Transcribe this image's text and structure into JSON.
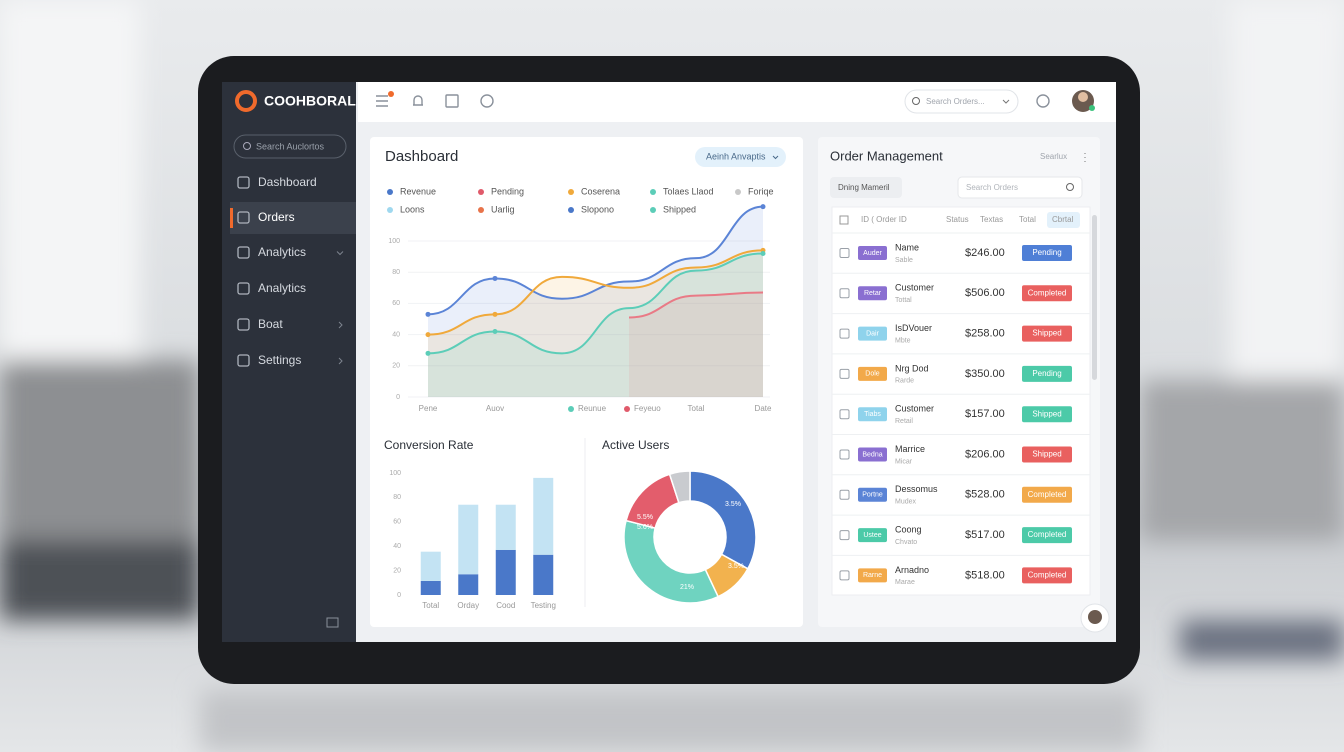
{
  "brand": "COOHBORAL",
  "sidebar": {
    "search": "Search Auclortos",
    "menu": [
      "Dashboard",
      "Orders",
      "Analytics",
      "Analytics",
      "Boat",
      "Settings"
    ]
  },
  "topbar": {
    "search": "Search Orders..."
  },
  "dashboard": {
    "title": "Dashboard",
    "button": "Aeinh Anvaptis"
  },
  "chart_data": [
    {
      "type": "line",
      "legend": [
        {
          "label": "Revenue",
          "color": "#4a78c9"
        },
        {
          "label": "Pending",
          "color": "#e05a6a"
        },
        {
          "label": "Coserena",
          "color": "#f0a93b"
        },
        {
          "label": "Tolaes Llaod",
          "color": "#5ccdb8"
        },
        {
          "label": "Foriqe",
          "color": "#c8c8c8"
        },
        {
          "label": "Loons",
          "color": "#9fd8ef"
        },
        {
          "label": "Uarlig",
          "color": "#e8734a"
        },
        {
          "label": "Slopono",
          "color": "#4a78c9"
        },
        {
          "label": "Shipped",
          "color": "#5ccdb8"
        }
      ],
      "categories": [
        "Pene",
        "Auov",
        null,
        null,
        "Total",
        "Date"
      ],
      "bottom_legend": [
        {
          "label": "Reunue",
          "color": "#5ccdb8"
        },
        {
          "label": "Feyeuo",
          "color": "#e05a6a"
        }
      ],
      "ylim": [
        0,
        125
      ],
      "yticks": [
        0,
        20,
        40,
        60,
        80,
        100
      ],
      "grid": true,
      "series": [
        {
          "color": "#5b84d6",
          "values": [
            53,
            76,
            63,
            74,
            89,
            122
          ]
        },
        {
          "color": "#f0a93b",
          "values": [
            40,
            53,
            77,
            70,
            83,
            94
          ]
        },
        {
          "color": "#5ccdb8",
          "values": [
            28,
            42,
            28,
            57,
            81,
            92
          ]
        },
        {
          "color": "#e97a86",
          "values": [
            null,
            null,
            null,
            51,
            65,
            67
          ]
        }
      ]
    },
    {
      "type": "bar",
      "title": "Conversion Rate",
      "stacked": true,
      "categories": [
        "Total",
        "Orday",
        "Cood",
        "Testing"
      ],
      "ylim": [
        0,
        100
      ],
      "yticks": [
        0,
        20,
        40,
        60,
        80,
        100
      ],
      "series": [
        {
          "color": "#4a78c9",
          "values": [
            11.5,
            17,
            37,
            33
          ]
        },
        {
          "color": "#c3e3f3",
          "values": [
            24,
            57,
            37,
            63
          ]
        }
      ]
    },
    {
      "type": "pie",
      "title": "Active Users",
      "values": [
        33,
        10,
        36,
        16,
        5
      ],
      "colors": [
        "#4a78c9",
        "#f2b24e",
        "#6fd3c0",
        "#e35d6c",
        "#c9cbcf"
      ],
      "annotations": [
        "3.5%",
        "5.5%",
        "5.6%",
        "3.5%",
        "21%"
      ]
    }
  ],
  "orders": {
    "title": "Order Management",
    "menu": "Searlux",
    "filter": "Dning Mameril",
    "search": "Search Orders",
    "headers": [
      "ID ( Order ID",
      "Status",
      "Textas",
      "Total",
      "Cbrtal"
    ],
    "rows": [
      {
        "tag": "Auder",
        "tag_color": "#8a6fd1",
        "name": "Name",
        "sub": "Sable",
        "amount": "$246.00",
        "status": "Pending",
        "status_color": "#4f7fd6"
      },
      {
        "tag": "Retar",
        "tag_color": "#8a6fd1",
        "name": "Customer",
        "sub": "Tottal",
        "amount": "$506.00",
        "status": "Completed",
        "status_color": "#e9605f"
      },
      {
        "tag": "Dair",
        "tag_color": "#8fd3ec",
        "name": "IsDVouer",
        "sub": "Mbte",
        "amount": "$258.00",
        "status": "Shipped",
        "status_color": "#e9605f"
      },
      {
        "tag": "Dole",
        "tag_color": "#f2a94a",
        "name": "Nrg Dod",
        "sub": "Rarde",
        "amount": "$350.00",
        "status": "Pending",
        "status_color": "#4ccaa8"
      },
      {
        "tag": "Tiabs",
        "tag_color": "#8fd3ec",
        "name": "Customer",
        "sub": "Retail",
        "amount": "$157.00",
        "status": "Shipped",
        "status_color": "#4ccaa8"
      },
      {
        "tag": "Bedna",
        "tag_color": "#8a6fd1",
        "name": "Marrice",
        "sub": "Micar",
        "amount": "$206.00",
        "status": "Shipped",
        "status_color": "#e9605f"
      },
      {
        "tag": "Portne",
        "tag_color": "#5b84d6",
        "name": "Dessomus",
        "sub": "Mudex",
        "amount": "$528.00",
        "status": "Completed",
        "status_color": "#f2a94a"
      },
      {
        "tag": "Ustee",
        "tag_color": "#4ccaa8",
        "name": "Coong",
        "sub": "Chvato",
        "amount": "$517.00",
        "status": "Completed",
        "status_color": "#4ccaa8"
      },
      {
        "tag": "Rarne",
        "tag_color": "#f2a94a",
        "name": "Arnadno",
        "sub": "Marae",
        "amount": "$518.00",
        "status": "Completed",
        "status_color": "#e9605f"
      }
    ]
  }
}
